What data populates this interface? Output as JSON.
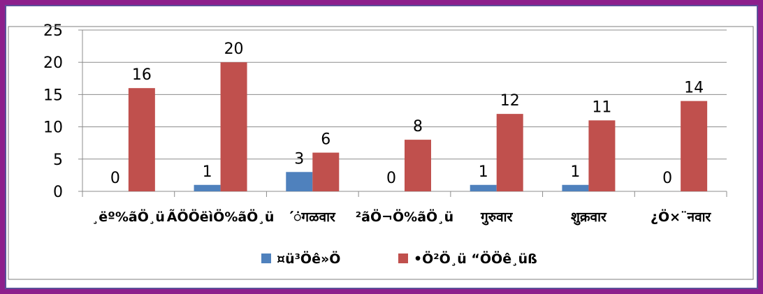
{
  "chart_data": {
    "type": "bar",
    "categories": [
      "¸ëº%ãÖ¸ü",
      "ÃÖÖëìÖ%ãÖ¸ü",
      "´ंगळवार",
      "²ãÖ¬Ö%ãÖ¸ü",
      "गुरुवार",
      "शुक्रवार",
      "¿Ö×¨नवार"
    ],
    "series": [
      {
        "name": "¤ü³Öê»Ö",
        "color": "#4f81bd",
        "values": [
          0,
          1,
          3,
          0,
          1,
          1,
          0
        ]
      },
      {
        "name": "•Ö²Ö¸ü “ÖÖê¸üß",
        "color": "#c0504d",
        "values": [
          16,
          20,
          6,
          8,
          12,
          11,
          14
        ]
      }
    ],
    "ylim": [
      0,
      25
    ],
    "yticks": [
      0,
      5,
      10,
      15,
      20,
      25
    ],
    "grid": true,
    "legend_position": "bottom"
  }
}
